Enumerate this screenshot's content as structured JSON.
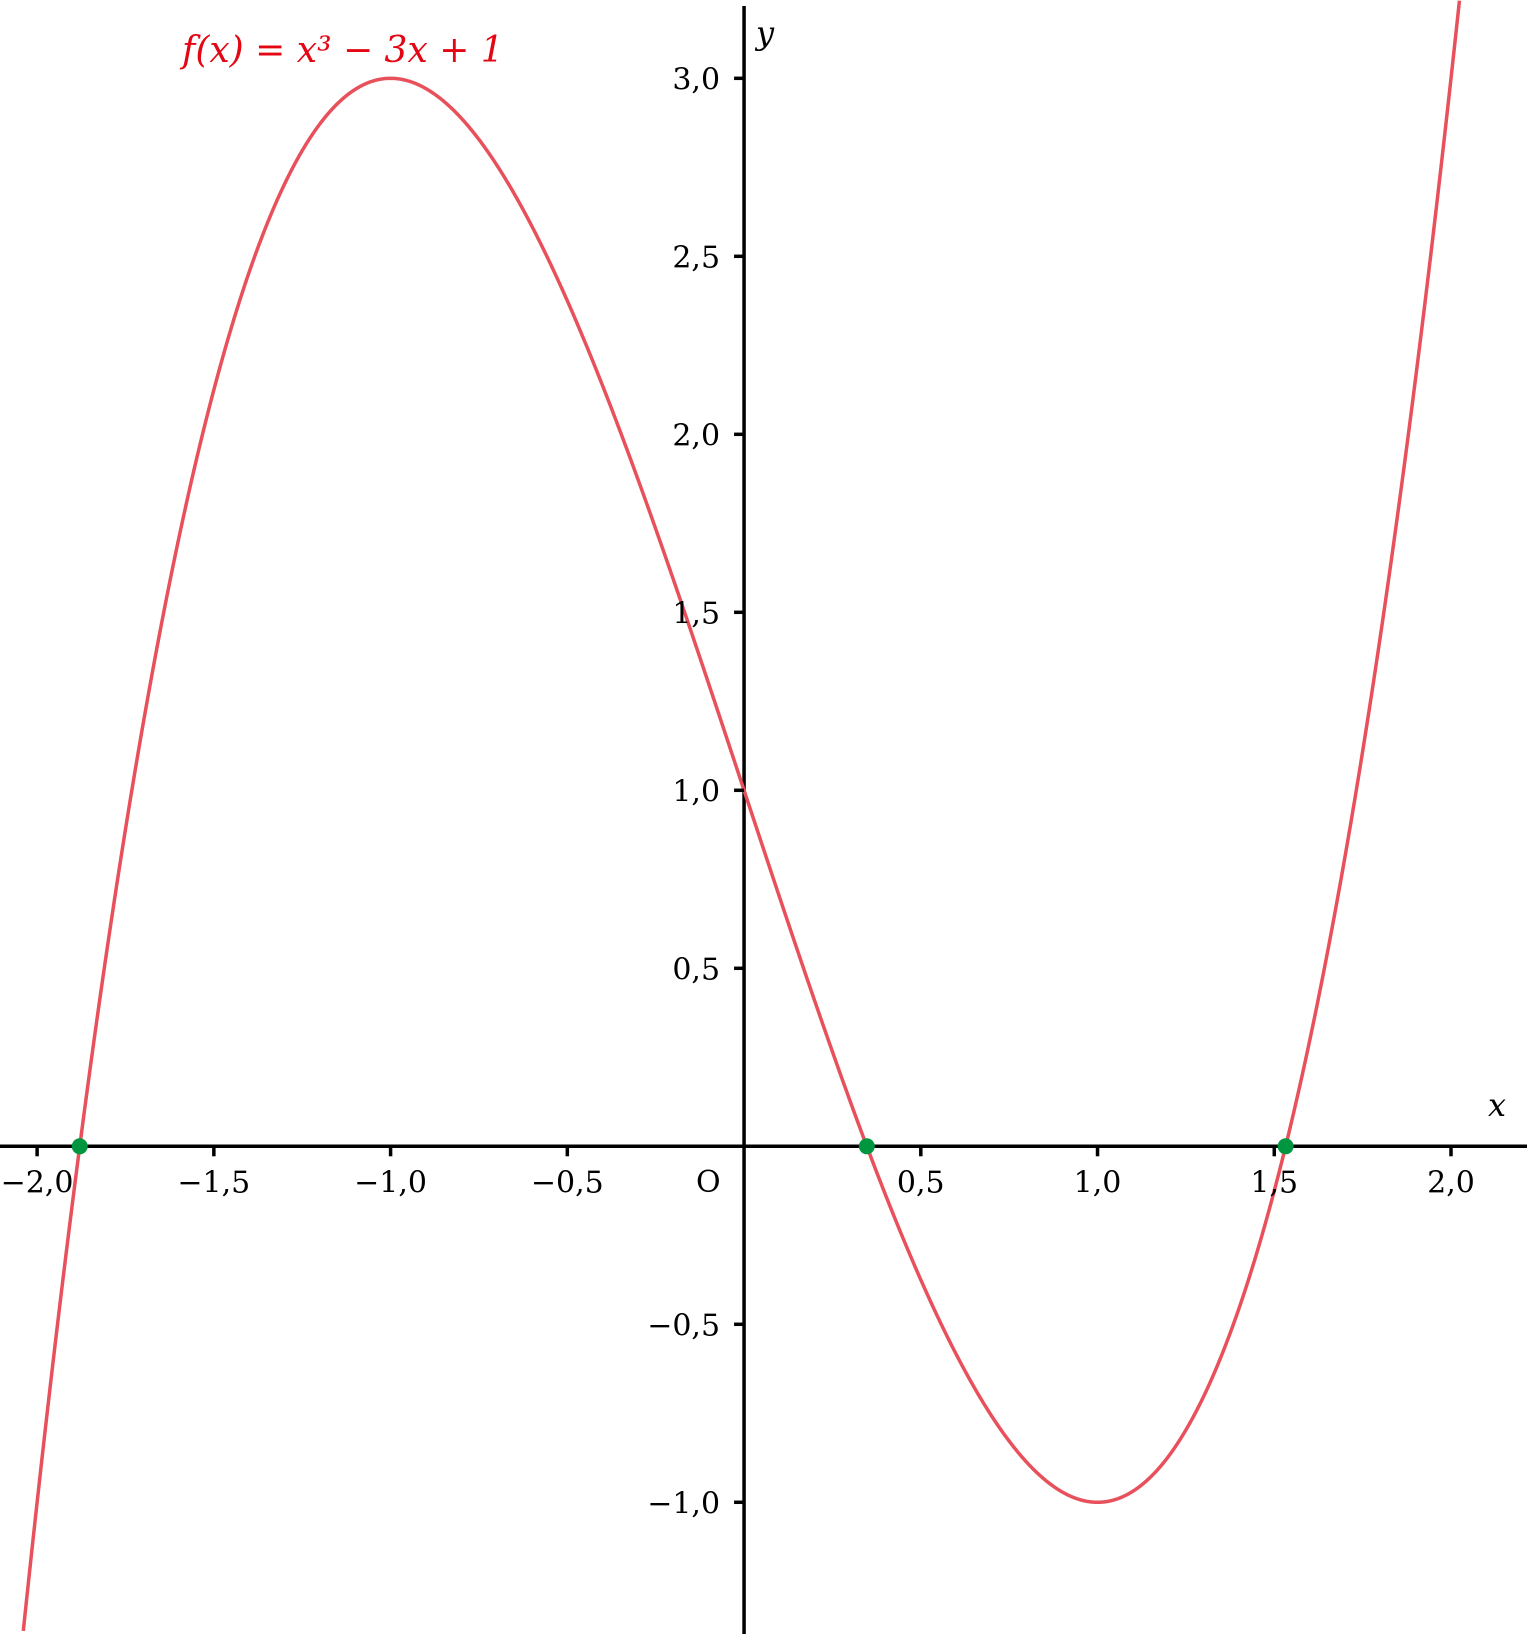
{
  "chart_data": {
    "type": "line",
    "title": "f(x) = x³ − 3x + 1",
    "function": "x^3 - 3x + 1",
    "xlabel": "x",
    "ylabel": "y",
    "origin_label": "O",
    "xlim": [
      -2.105,
      2.215
    ],
    "ylim": [
      -1.37,
      3.22
    ],
    "x_ticks": [
      -2.0,
      -1.5,
      -1.0,
      -0.5,
      0.5,
      1.0,
      1.5,
      2.0
    ],
    "x_tick_labels": [
      "−2,0",
      "−1,5",
      "−1,0",
      "−0,5",
      "0,5",
      "1,0",
      "1,5",
      "2,0"
    ],
    "y_ticks": [
      3.0,
      2.5,
      2.0,
      1.5,
      1.0,
      0.5,
      -0.5,
      -1.0
    ],
    "y_tick_labels": [
      "3,0",
      "2,5",
      "2,0",
      "1,5",
      "1,0",
      "0,5",
      "−0,5",
      "−1,0"
    ],
    "grid": false,
    "roots": [
      -1.8794,
      0.3473,
      1.5321
    ],
    "colors": {
      "curve": "#e8505b",
      "title": "#e30613",
      "roots": "#009640",
      "axes": "#000000"
    }
  }
}
